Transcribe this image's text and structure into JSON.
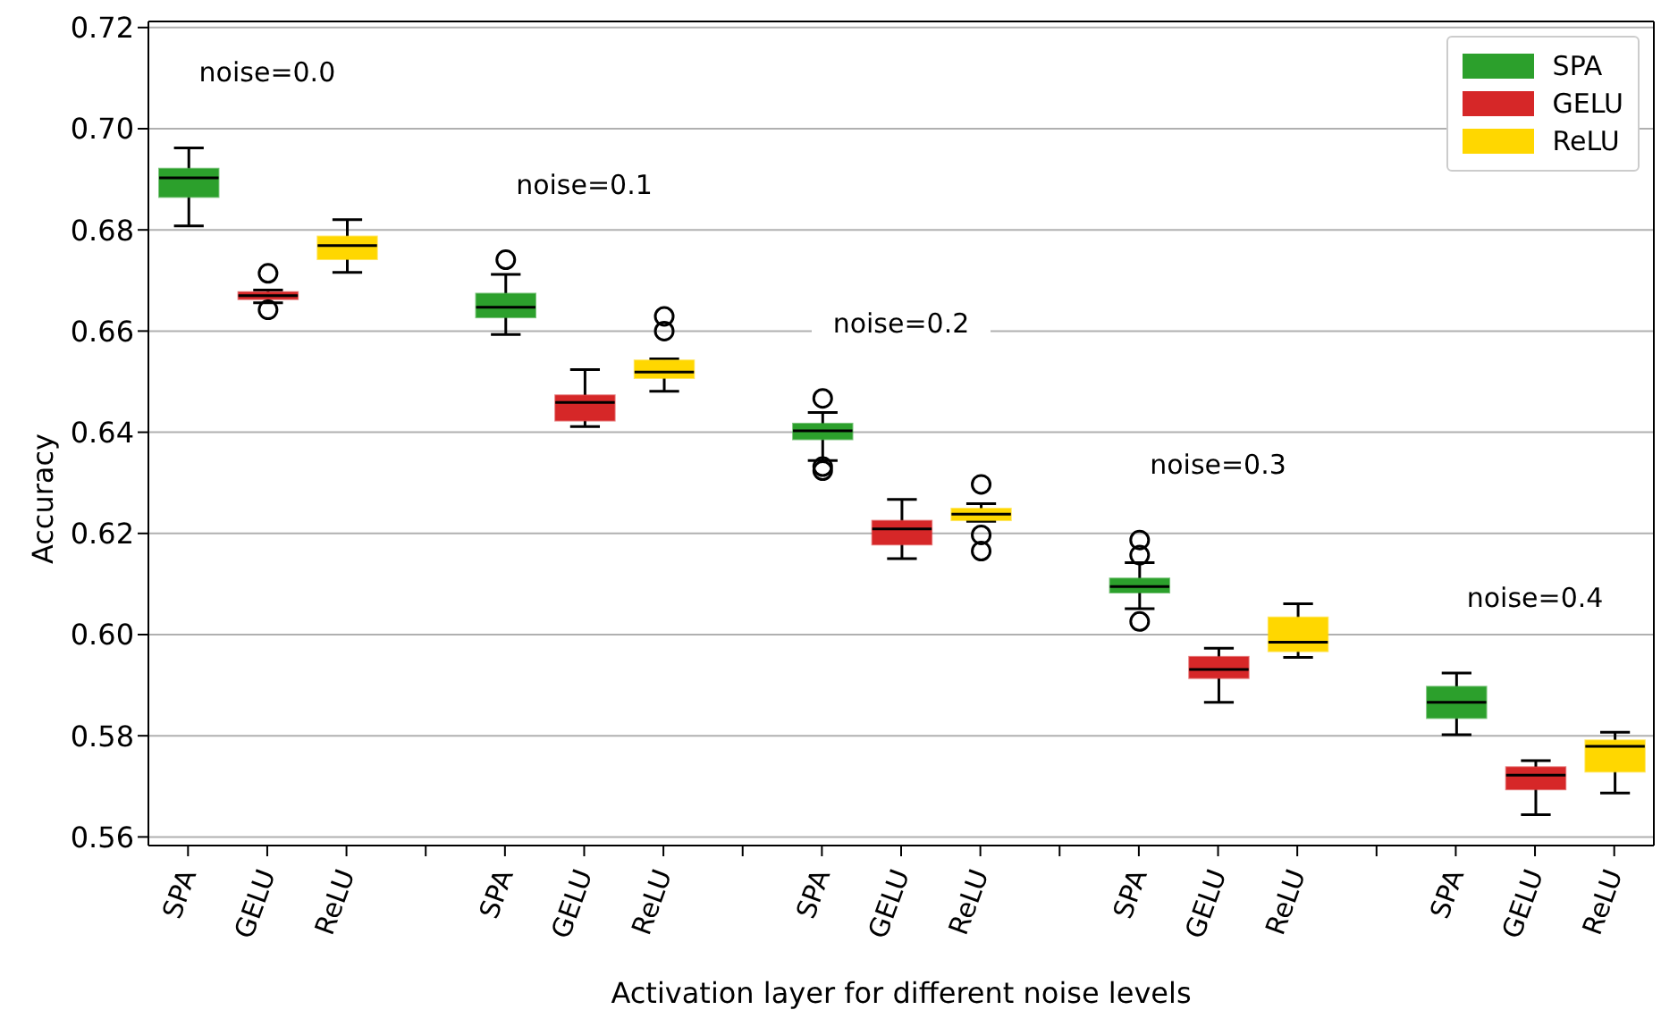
{
  "chart_data": {
    "type": "box",
    "xlabel": "Activation layer for different noise levels",
    "ylabel": "Accuracy",
    "categories": [
      "SPA",
      "GELU",
      "ReLU",
      null,
      "SPA",
      "GELU",
      "ReLU",
      null,
      "SPA",
      "GELU",
      "ReLU",
      null,
      "SPA",
      "GELU",
      "ReLU",
      null,
      "SPA",
      "GELU",
      "ReLU"
    ],
    "series": [
      {
        "name": "SPA",
        "color": "#2ca02c",
        "boxes": [
          {
            "low": 0.6808,
            "q1": 0.6865,
            "median": 0.6903,
            "q3": 0.6921,
            "high": 0.6962
          },
          null,
          null,
          null,
          {
            "low": 0.6593,
            "q1": 0.6627,
            "median": 0.6647,
            "q3": 0.6674,
            "high": 0.6712,
            "outliers": [
              0.6741
            ]
          },
          null,
          null,
          null,
          {
            "low": 0.6344,
            "q1": 0.6386,
            "median": 0.6403,
            "q3": 0.6417,
            "high": 0.6439,
            "outliers": [
              0.6467,
              0.6332,
              0.6324
            ]
          },
          null,
          null,
          null,
          {
            "low": 0.6051,
            "q1": 0.6083,
            "median": 0.6095,
            "q3": 0.6111,
            "high": 0.6142,
            "outliers": [
              0.6187,
              0.6157,
              0.6026
            ]
          },
          null,
          null,
          null,
          {
            "low": 0.5802,
            "q1": 0.5835,
            "median": 0.5866,
            "q3": 0.5897,
            "high": 0.5924
          },
          null,
          null
        ]
      },
      {
        "name": "GELU",
        "color": "#d62728",
        "boxes": [
          null,
          {
            "low": 0.6656,
            "q1": 0.6663,
            "median": 0.667,
            "q3": 0.6677,
            "high": 0.6681,
            "outliers": [
              0.6714,
              0.6642
            ]
          },
          null,
          null,
          null,
          {
            "low": 0.6411,
            "q1": 0.6423,
            "median": 0.6459,
            "q3": 0.6473,
            "high": 0.6524
          },
          null,
          null,
          null,
          {
            "low": 0.615,
            "q1": 0.6178,
            "median": 0.6209,
            "q3": 0.6225,
            "high": 0.6267
          },
          null,
          null,
          null,
          {
            "low": 0.5866,
            "q1": 0.5914,
            "median": 0.5931,
            "q3": 0.5956,
            "high": 0.5973
          },
          null,
          null,
          null,
          {
            "low": 0.5644,
            "q1": 0.5694,
            "median": 0.5722,
            "q3": 0.5738,
            "high": 0.5751
          },
          null
        ]
      },
      {
        "name": "ReLU",
        "color": "#ffd700",
        "boxes": [
          null,
          null,
          {
            "low": 0.6716,
            "q1": 0.6742,
            "median": 0.6769,
            "q3": 0.6787,
            "high": 0.682
          },
          null,
          null,
          null,
          {
            "low": 0.6481,
            "q1": 0.6507,
            "median": 0.6519,
            "q3": 0.6542,
            "high": 0.6545,
            "outliers": [
              0.6629,
              0.66
            ]
          },
          null,
          null,
          null,
          {
            "low": 0.6224,
            "q1": 0.6226,
            "median": 0.6238,
            "q3": 0.6249,
            "high": 0.6259,
            "outliers": [
              0.6297,
              0.6197,
              0.6165
            ]
          },
          null,
          null,
          null,
          {
            "low": 0.5955,
            "q1": 0.5967,
            "median": 0.5985,
            "q3": 0.6034,
            "high": 0.6061
          },
          null,
          null,
          null,
          {
            "low": 0.5687,
            "q1": 0.5729,
            "median": 0.5779,
            "q3": 0.5791,
            "high": 0.5807
          }
        ]
      }
    ],
    "ylim": [
      0.5583,
      0.7212
    ],
    "yticks": [
      0.56,
      0.58,
      {
        "value": 0.6,
        "label": "0.60"
      },
      0.62,
      0.64,
      0.66,
      0.68,
      {
        "value": 0.7,
        "label": "0.70"
      },
      0.72
    ],
    "grid": "y",
    "legend": "top right",
    "annotations": [
      "noise=0.0",
      "noise=0.1",
      "noise=0.2",
      "noise=0.3",
      "noise=0.4"
    ]
  }
}
